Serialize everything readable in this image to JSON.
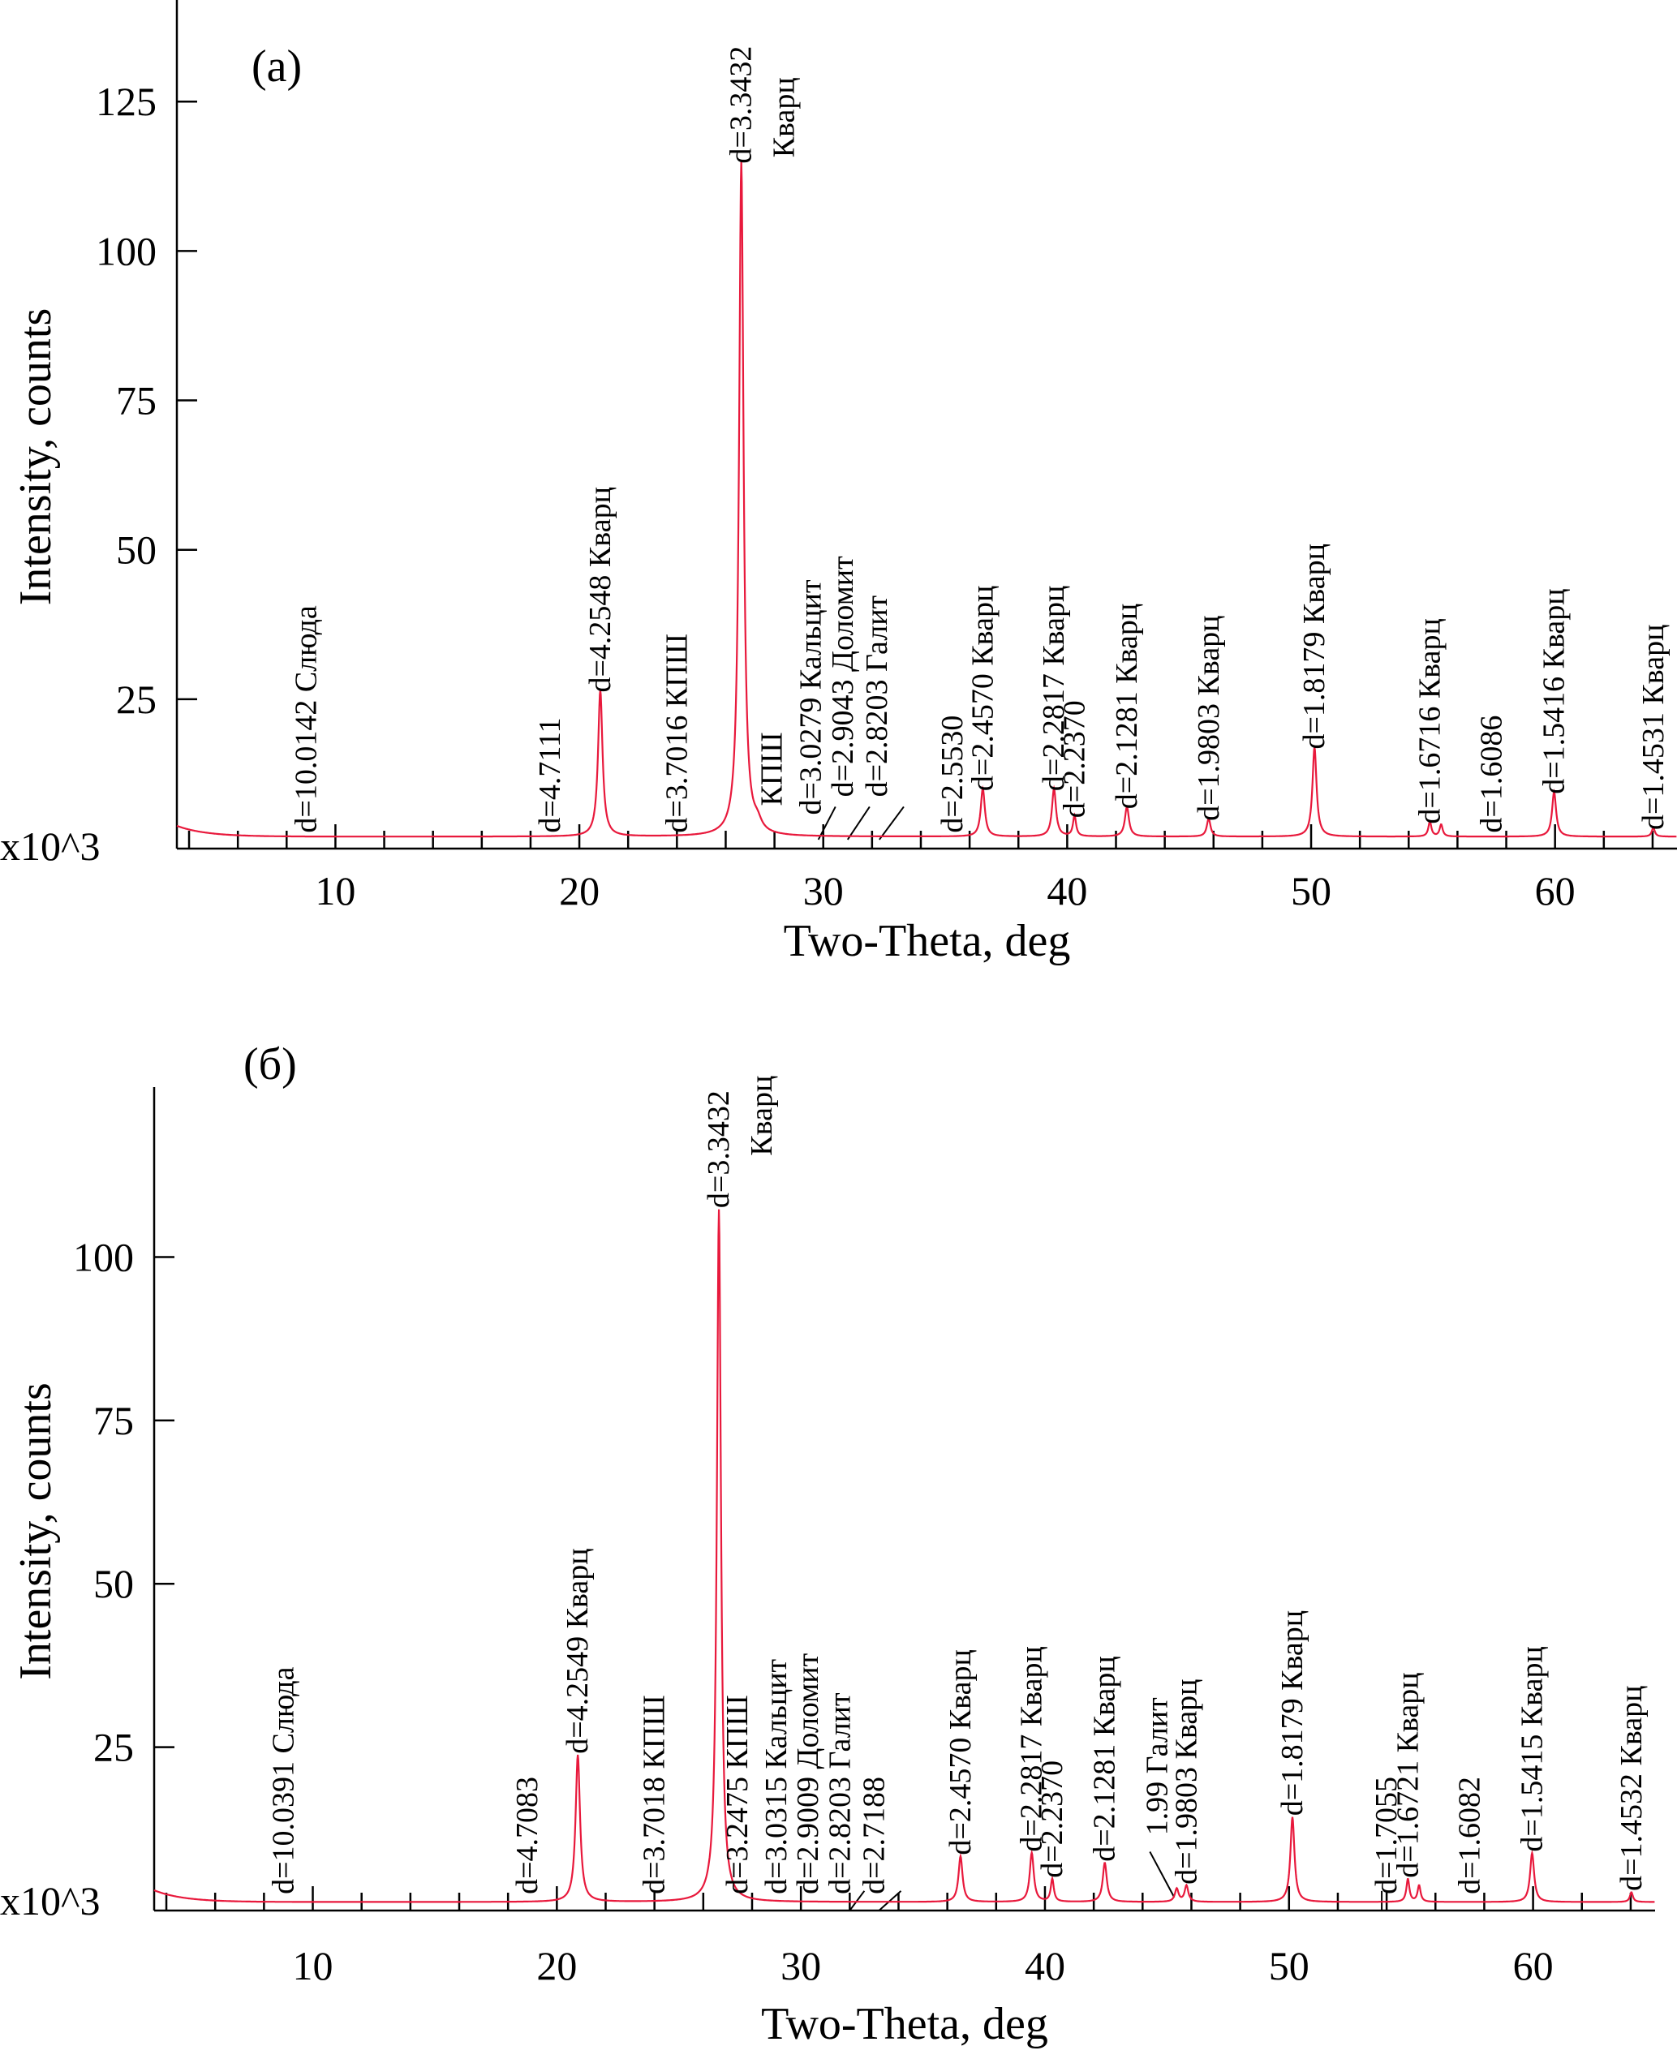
{
  "chart_data": [
    {
      "type": "line",
      "panel_label": "(а)",
      "xlabel": "Two-Theta, deg",
      "ylabel": "Intensity, counts",
      "y_multiplier": "x10^3",
      "xlim": [
        3.5,
        65
      ],
      "ylim": [
        0,
        142
      ],
      "x_ticks": [
        "10",
        "20",
        "30",
        "40",
        "50",
        "60"
      ],
      "y_ticks": [
        "25",
        "50",
        "75",
        "100",
        "125"
      ],
      "baseline": 2,
      "peaks": [
        {
          "x": 20.86,
          "y": 24.5,
          "w": 0.22
        },
        {
          "x": 26.64,
          "y": 113,
          "w": 0.22
        },
        {
          "x": 27.3,
          "y": 1.5,
          "w": 0.4
        },
        {
          "x": 36.54,
          "y": 8,
          "w": 0.2
        },
        {
          "x": 39.46,
          "y": 8,
          "w": 0.2
        },
        {
          "x": 40.3,
          "y": 3.5,
          "w": 0.15
        },
        {
          "x": 42.45,
          "y": 5,
          "w": 0.2
        },
        {
          "x": 45.8,
          "y": 3,
          "w": 0.18
        },
        {
          "x": 50.14,
          "y": 15,
          "w": 0.2
        },
        {
          "x": 54.87,
          "y": 2.5,
          "w": 0.15
        },
        {
          "x": 55.33,
          "y": 2,
          "w": 0.15
        },
        {
          "x": 59.96,
          "y": 7.5,
          "w": 0.2
        },
        {
          "x": 64.03,
          "y": 1.5,
          "w": 0.15
        }
      ],
      "annotations": [
        {
          "x": 8.8,
          "y": 1,
          "text": "d=10.0142 Слюда"
        },
        {
          "x": 18.8,
          "y": 1,
          "text": "d=4.7111"
        },
        {
          "x": 20.86,
          "y": 24.5,
          "text": "d=4.2548 Кварц"
        },
        {
          "x": 24,
          "y": 1,
          "text": "d=3.7016 КПШ"
        },
        {
          "x": 26.64,
          "y": 113,
          "text": "d=3.3432"
        },
        {
          "x": 28.4,
          "y": 114,
          "text": "Кварц"
        },
        {
          "x": 27.9,
          "y": 5.5,
          "text": "КПШ"
        },
        {
          "x": 29.5,
          "y": 4,
          "text": "d=3.0279 Кальцит"
        },
        {
          "x": 30.8,
          "y": 7,
          "text": "d=2.9043 Доломит"
        },
        {
          "x": 32.2,
          "y": 7,
          "text": "d=2.8203 Галит"
        },
        {
          "x": 35.3,
          "y": 1,
          "text": "d=2.5530"
        },
        {
          "x": 36.54,
          "y": 8,
          "text": "d=2.4570 Кварц"
        },
        {
          "x": 39.46,
          "y": 8,
          "text": "d=2.2817 Кварц"
        },
        {
          "x": 40.3,
          "y": 3.5,
          "text": "d=2.2370"
        },
        {
          "x": 42.45,
          "y": 5,
          "text": "d=2.1281 Кварц"
        },
        {
          "x": 45.8,
          "y": 3,
          "text": "d=1.9803 Кварц"
        },
        {
          "x": 50.14,
          "y": 15,
          "text": "d=1.8179 Кварц"
        },
        {
          "x": 54.87,
          "y": 2.5,
          "text": "d=1.6716 Кварц"
        },
        {
          "x": 57.4,
          "y": 1,
          "text": "d=1.6086"
        },
        {
          "x": 59.96,
          "y": 7.5,
          "text": "d=1.5416 Кварц"
        },
        {
          "x": 64.03,
          "y": 1.5,
          "text": "d=1.4531 Кварц"
        }
      ],
      "leaders": [
        {
          "from": [
            30.5,
            7
          ],
          "to": [
            29.8,
            1.5
          ]
        },
        {
          "from": [
            31.9,
            7
          ],
          "to": [
            31,
            1.5
          ]
        },
        {
          "from": [
            33.3,
            7
          ],
          "to": [
            32.3,
            1.5
          ]
        }
      ]
    },
    {
      "type": "line",
      "panel_label": "(б)",
      "xlabel": "Two-Theta, deg",
      "ylabel": "Intensity, counts",
      "y_multiplier": "x10^3",
      "xlim": [
        3.5,
        65
      ],
      "ylim": [
        0,
        126
      ],
      "x_ticks": [
        "10",
        "20",
        "30",
        "40",
        "50",
        "60"
      ],
      "y_ticks": [
        "25",
        "50",
        "75",
        "100"
      ],
      "baseline": 1.3,
      "peaks": [
        {
          "x": 20.86,
          "y": 22.5,
          "w": 0.22
        },
        {
          "x": 26.64,
          "y": 106,
          "w": 0.2
        },
        {
          "x": 36.54,
          "y": 7,
          "w": 0.2
        },
        {
          "x": 39.46,
          "y": 7.5,
          "w": 0.2
        },
        {
          "x": 40.3,
          "y": 3.5,
          "w": 0.15
        },
        {
          "x": 42.45,
          "y": 6,
          "w": 0.2
        },
        {
          "x": 45.4,
          "y": 2,
          "w": 0.18
        },
        {
          "x": 45.8,
          "y": 2.5,
          "w": 0.18
        },
        {
          "x": 50.14,
          "y": 13,
          "w": 0.2
        },
        {
          "x": 54.87,
          "y": 3.5,
          "w": 0.15
        },
        {
          "x": 55.33,
          "y": 2.5,
          "w": 0.15
        },
        {
          "x": 59.96,
          "y": 7.5,
          "w": 0.2
        },
        {
          "x": 64.03,
          "y": 1.5,
          "w": 0.15
        }
      ],
      "annotations": [
        {
          "x": 8.8,
          "y": 1,
          "text": "d=10.0391 Слюда"
        },
        {
          "x": 18.8,
          "y": 1,
          "text": "d=4.7083"
        },
        {
          "x": 20.86,
          "y": 22.5,
          "text": "d=4.2549 Кварц"
        },
        {
          "x": 24,
          "y": 1,
          "text": "d=3.7018 КПШ"
        },
        {
          "x": 26.64,
          "y": 106,
          "text": "d=3.3432"
        },
        {
          "x": 28.4,
          "y": 114,
          "text": "Кварц"
        },
        {
          "x": 27.4,
          "y": 1,
          "text": "d=3.2475 КПШ"
        },
        {
          "x": 29,
          "y": 1,
          "text": "d=3.0315 Кальцит"
        },
        {
          "x": 30.3,
          "y": 1,
          "text": "d=2.9009 Доломит"
        },
        {
          "x": 31.6,
          "y": 1,
          "text": "d=2.8203 Галит"
        },
        {
          "x": 33,
          "y": 1,
          "text": "d=2.7188"
        },
        {
          "x": 36.54,
          "y": 7,
          "text": "d=2.4570 Кварц"
        },
        {
          "x": 39.46,
          "y": 7.5,
          "text": "d=2.2817 Кварц"
        },
        {
          "x": 40.3,
          "y": 3.5,
          "text": "d=2.2370"
        },
        {
          "x": 42.45,
          "y": 6,
          "text": "d=2.1281 Кварц"
        },
        {
          "x": 44.6,
          "y": 10,
          "text": "1.99 Галит"
        },
        {
          "x": 45.8,
          "y": 2.5,
          "text": "d=1.9803 Кварц"
        },
        {
          "x": 50.14,
          "y": 13,
          "text": "d=1.8179 Кварц"
        },
        {
          "x": 54,
          "y": 1,
          "text": "d=1.7055"
        },
        {
          "x": 54.87,
          "y": 3.5,
          "text": "d=1.6721 Кварц"
        },
        {
          "x": 57.4,
          "y": 1,
          "text": "d=1.6082"
        },
        {
          "x": 59.96,
          "y": 7.5,
          "text": "d=1.5415 Кварц"
        },
        {
          "x": 64.03,
          "y": 1.5,
          "text": "d=1.4532 Кварц"
        }
      ],
      "leaders": [
        {
          "from": [
            32.6,
            3
          ],
          "to": [
            32,
            0
          ]
        },
        {
          "from": [
            34.1,
            3
          ],
          "to": [
            33.2,
            0
          ]
        },
        {
          "from": [
            44.3,
            9
          ],
          "to": [
            45.3,
            2
          ]
        },
        {
          "from": [
            53.8,
            3
          ],
          "to": [
            53.8,
            0
          ]
        }
      ]
    }
  ]
}
